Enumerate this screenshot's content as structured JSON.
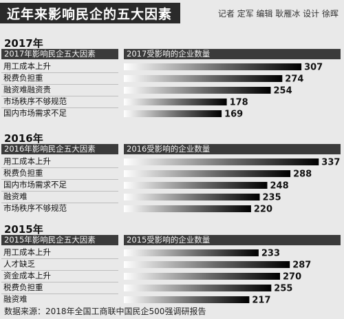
{
  "title": "近年来影响民企的五大因素",
  "credits": "记者 定军 编辑 耿雁冰 设计 徐晖",
  "source": "数据来源：2018年全国工商联中国民企500强调研报告",
  "sections": [
    {
      "year": "2017年",
      "left_header": "2017年影响民企五大因素",
      "right_header": "2017受影响的企业数量",
      "items": [
        {
          "label": "用工成本上升",
          "value": 307
        },
        {
          "label": "税费负担重",
          "value": 274
        },
        {
          "label": "融资难融资贵",
          "value": 254
        },
        {
          "label": "市场秩序不够规范",
          "value": 178
        },
        {
          "label": "国内市场需求不足",
          "value": 169
        }
      ]
    },
    {
      "year": "2016年",
      "left_header": "2016年影响民企五大因素",
      "right_header": "2016受影响的企业数量",
      "items": [
        {
          "label": "用工成本上升",
          "value": 337
        },
        {
          "label": "税费负担重",
          "value": 288
        },
        {
          "label": "国内市场需求不足",
          "value": 248
        },
        {
          "label": "融资难",
          "value": 235
        },
        {
          "label": "市场秩序不够规范",
          "value": 220
        }
      ]
    },
    {
      "year": "2015年",
      "left_header": "2015年影响民企五大因素",
      "right_header": "2015受影响的企业数量",
      "items": [
        {
          "label": "用工成本上升",
          "value": 233
        },
        {
          "label": "人才缺乏",
          "value": 287
        },
        {
          "label": "资金成本上升",
          "value": 270
        },
        {
          "label": "税费负担重",
          "value": 255
        },
        {
          "label": "融资难",
          "value": 217
        }
      ]
    }
  ],
  "chart_data": [
    {
      "type": "bar",
      "title": "2017年",
      "xlabel": "2017年影响民企五大因素",
      "ylabel": "2017受影响的企业数量",
      "categories": [
        "用工成本上升",
        "税费负担重",
        "融资难融资贵",
        "市场秩序不够规范",
        "国内市场需求不足"
      ],
      "values": [
        307,
        274,
        254,
        178,
        169
      ],
      "orientation": "horizontal"
    },
    {
      "type": "bar",
      "title": "2016年",
      "xlabel": "2016年影响民企五大因素",
      "ylabel": "2016受影响的企业数量",
      "categories": [
        "用工成本上升",
        "税费负担重",
        "国内市场需求不足",
        "融资难",
        "市场秩序不够规范"
      ],
      "values": [
        337,
        288,
        248,
        235,
        220
      ],
      "orientation": "horizontal"
    },
    {
      "type": "bar",
      "title": "2015年",
      "xlabel": "2015年影响民企五大因素",
      "ylabel": "2015受影响的企业数量",
      "categories": [
        "用工成本上升",
        "人才缺乏",
        "资金成本上升",
        "税费负担重",
        "融资难"
      ],
      "values": [
        233,
        287,
        270,
        255,
        217
      ],
      "orientation": "horizontal"
    }
  ]
}
